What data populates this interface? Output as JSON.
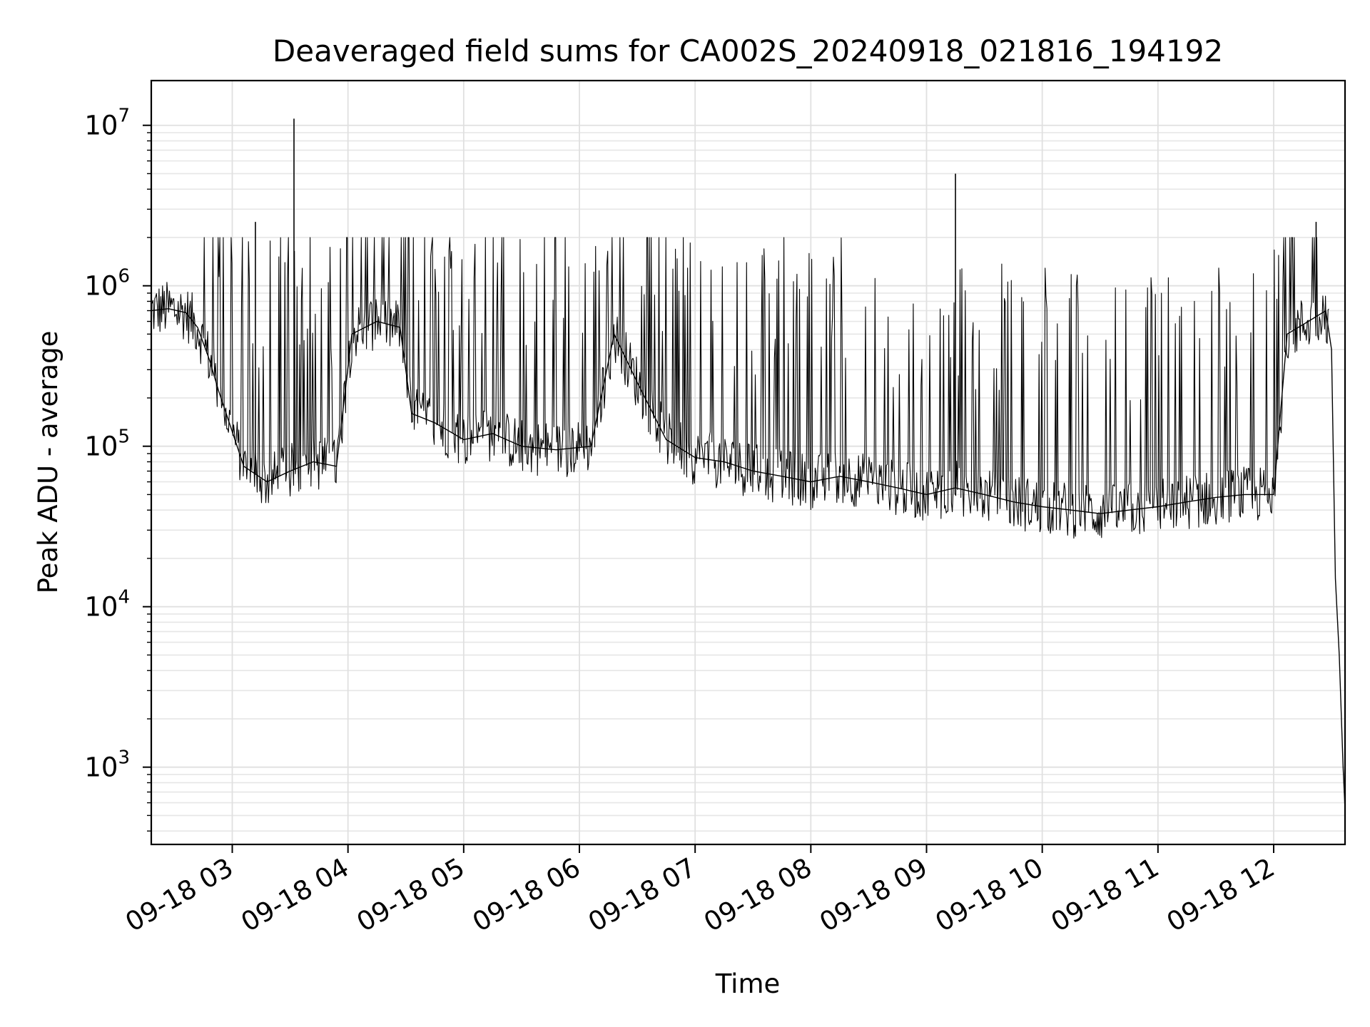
{
  "chart_data": {
    "type": "line",
    "title": "Deaveraged field sums for CA002S_20240918_021816_194192",
    "xlabel": "Time",
    "ylabel": "Peak ADU - average",
    "yscale": "log",
    "ylim": [
      330,
      19000000
    ],
    "xlim": [
      "2024-09-18 02:18",
      "2024-09-18 12:37"
    ],
    "grid": true,
    "legend": "none",
    "line_color": "#000000",
    "x_tick_labels": [
      "09-18 03",
      "09-18 04",
      "09-18 05",
      "09-18 06",
      "09-18 07",
      "09-18 08",
      "09-18 09",
      "09-18 10",
      "09-18 11",
      "09-18 12"
    ],
    "y_tick_labels": [
      {
        "base": "10",
        "exp": "3",
        "value": 1000
      },
      {
        "base": "10",
        "exp": "4",
        "value": 10000
      },
      {
        "base": "10",
        "exp": "5",
        "value": 100000
      },
      {
        "base": "10",
        "exp": "6",
        "value": 1000000
      },
      {
        "base": "10",
        "exp": "7",
        "value": 10000000
      }
    ],
    "series": [
      {
        "values": [
          [
            "2024-09-18 02:18",
            700000
          ],
          [
            "2024-09-18 02:27",
            720000
          ],
          [
            "2024-09-18 02:36",
            680000
          ],
          [
            "2024-09-18 02:42",
            550000
          ],
          [
            "2024-09-18 02:48",
            350000
          ],
          [
            "2024-09-18 02:53",
            220000
          ],
          [
            "2024-09-18 03:06",
            75000
          ],
          [
            "2024-09-18 03:18",
            60000
          ],
          [
            "2024-09-18 03:30",
            70000
          ],
          [
            "2024-09-18 03:42",
            80000
          ],
          [
            "2024-09-18 03:54",
            75000
          ],
          [
            "2024-09-18 04:02",
            500000
          ],
          [
            "2024-09-18 04:15",
            600000
          ],
          [
            "2024-09-18 04:27",
            550000
          ],
          [
            "2024-09-18 04:33",
            160000
          ],
          [
            "2024-09-18 04:45",
            140000
          ],
          [
            "2024-09-18 05:00",
            110000
          ],
          [
            "2024-09-18 05:15",
            120000
          ],
          [
            "2024-09-18 05:30",
            100000
          ],
          [
            "2024-09-18 05:48",
            95000
          ],
          [
            "2024-09-18 06:06",
            100000
          ],
          [
            "2024-09-18 06:18",
            500000
          ],
          [
            "2024-09-18 06:30",
            250000
          ],
          [
            "2024-09-18 06:45",
            110000
          ],
          [
            "2024-09-18 07:00",
            85000
          ],
          [
            "2024-09-18 07:15",
            80000
          ],
          [
            "2024-09-18 07:30",
            70000
          ],
          [
            "2024-09-18 07:45",
            65000
          ],
          [
            "2024-09-18 08:00",
            60000
          ],
          [
            "2024-09-18 08:15",
            65000
          ],
          [
            "2024-09-18 08:30",
            60000
          ],
          [
            "2024-09-18 08:45",
            55000
          ],
          [
            "2024-09-18 09:00",
            50000
          ],
          [
            "2024-09-18 09:15",
            55000
          ],
          [
            "2024-09-18 09:30",
            50000
          ],
          [
            "2024-09-18 09:45",
            45000
          ],
          [
            "2024-09-18 10:00",
            42000
          ],
          [
            "2024-09-18 10:15",
            40000
          ],
          [
            "2024-09-18 10:30",
            38000
          ],
          [
            "2024-09-18 10:45",
            40000
          ],
          [
            "2024-09-18 11:00",
            42000
          ],
          [
            "2024-09-18 11:15",
            45000
          ],
          [
            "2024-09-18 11:30",
            48000
          ],
          [
            "2024-09-18 11:45",
            50000
          ],
          [
            "2024-09-18 12:00",
            50000
          ],
          [
            "2024-09-18 12:07",
            500000
          ],
          [
            "2024-09-18 12:18",
            600000
          ],
          [
            "2024-09-18 12:27",
            700000
          ],
          [
            "2024-09-18 12:30",
            400000
          ],
          [
            "2024-09-18 12:32",
            15000
          ],
          [
            "2024-09-18 12:34",
            5000
          ],
          [
            "2024-09-18 12:36",
            1000
          ],
          [
            "2024-09-18 12:37",
            550
          ]
        ]
      }
    ]
  }
}
